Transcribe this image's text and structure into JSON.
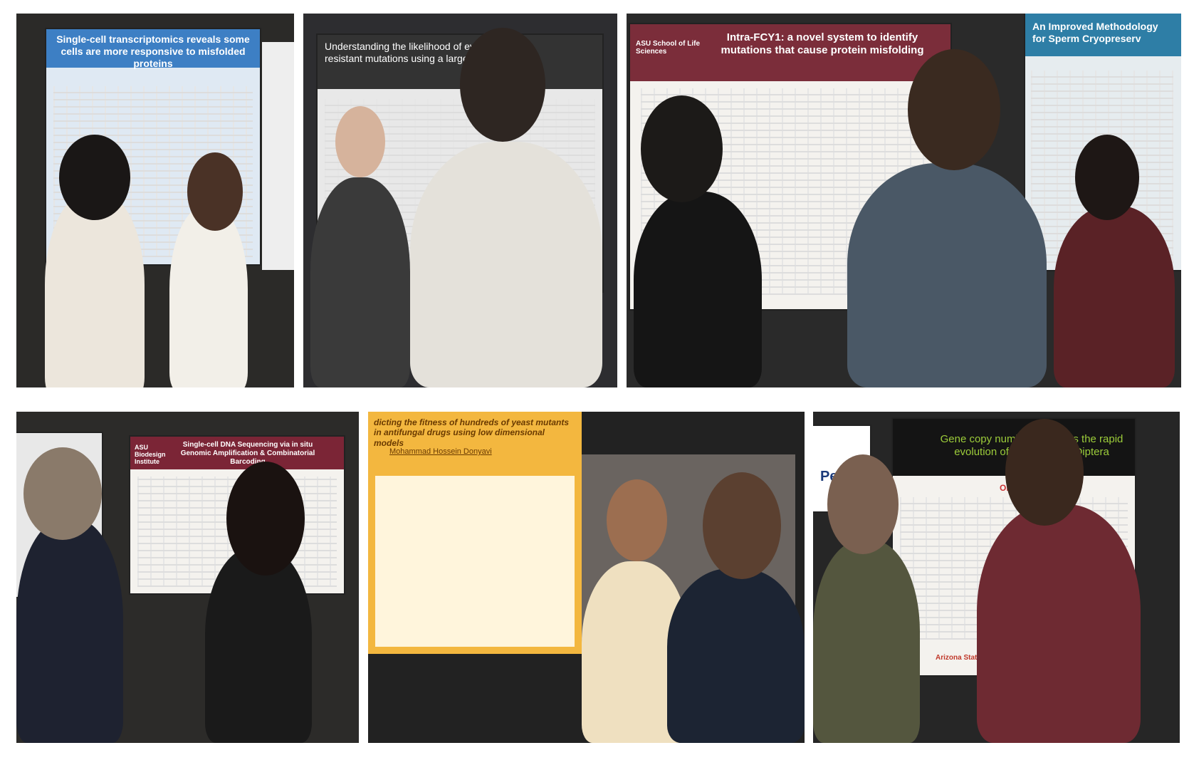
{
  "photos": [
    {
      "poster_title": "Single-cell transcriptomics reveals some cells are more responsive to misfolded proteins"
    },
    {
      "poster_title": "Understanding the likelihood of evolution",
      "poster_subtitle": "resistant mutations using a large popula"
    },
    {
      "poster_title": "Intra-FCY1: a novel system to identify mutations that cause protein misfolding",
      "logo": "ASU School of Life Sciences",
      "second_poster_title": "An Improved Methodology for Sperm Cryopreserv"
    },
    {
      "poster_title": "Single-cell DNA Sequencing via in situ Genomic Amplification & Combinatorial Barcoding",
      "logo": "ASU Biodesign Institute"
    },
    {
      "poster_title": "dicting the fitness of hundreds of yeast mutants in antifungal drugs using low dimensional models",
      "author": "Mohammad Hossein Donyavi"
    },
    {
      "poster_title": "Gene copy number promotes the rapid evolution of pests across Diptera",
      "logo": "Penn",
      "figure_label": "OrthoDB",
      "footer": "Arizona State University"
    }
  ]
}
